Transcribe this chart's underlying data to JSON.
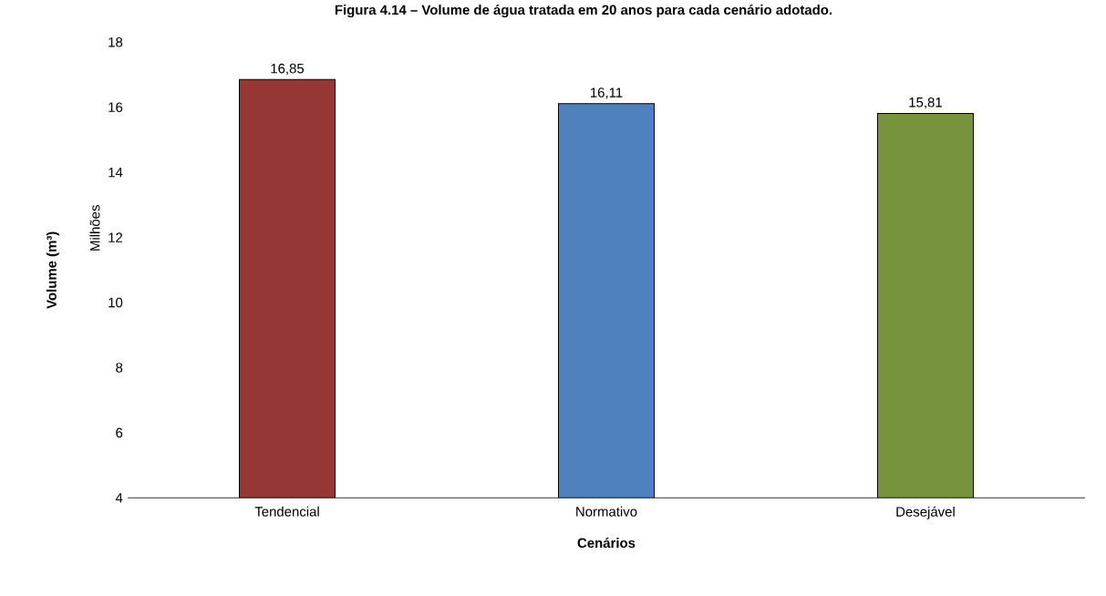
{
  "chart_data": {
    "type": "bar",
    "title": "Figura 4.14 – Volume de água tratada em 20 anos para cada cenário adotado.",
    "xlabel": "Cenários",
    "ylabel": "Volume (m³)",
    "annotations": [
      "Milhões"
    ],
    "categories": [
      "Tendencial",
      "Normativo",
      "Desejável"
    ],
    "values": [
      16.85,
      16.11,
      15.81
    ],
    "colors": [
      "#953735",
      "#4f81bd",
      "#77933c"
    ],
    "ylim": [
      4,
      18
    ],
    "yticks": [
      4,
      6,
      8,
      10,
      12,
      14,
      16,
      18
    ],
    "value_labels": [
      "16,85",
      "16,11",
      "15,81"
    ],
    "grid": false
  }
}
